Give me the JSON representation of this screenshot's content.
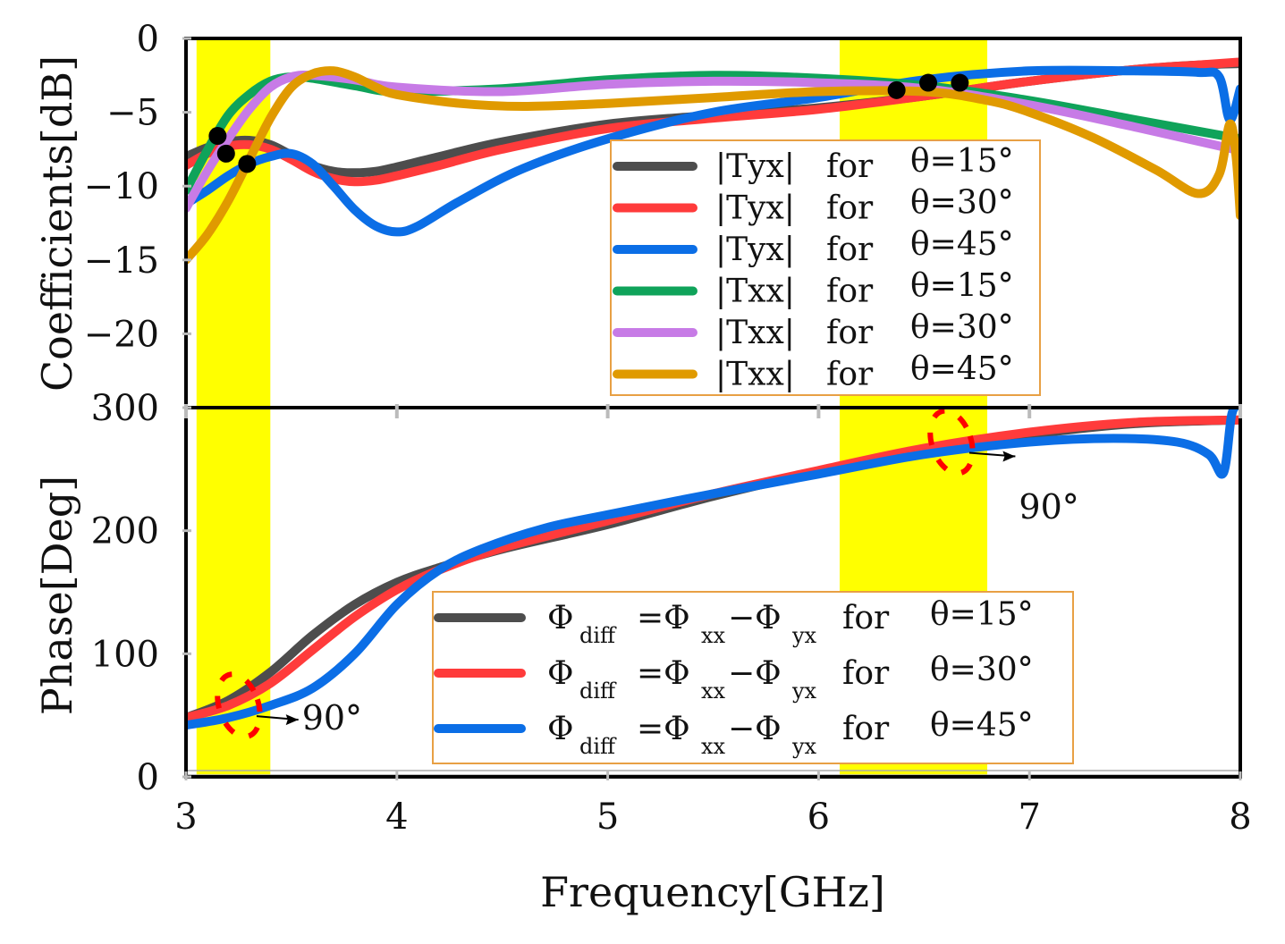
{
  "chart_data": [
    {
      "type": "line",
      "panel": "top",
      "ylabel": "Coefficients[dB]",
      "xlabel": "",
      "xlim": [
        3,
        8
      ],
      "ylim": [
        -25,
        0
      ],
      "yticks": [
        0,
        -5,
        -10,
        -15,
        -20
      ],
      "ytick_labels": [
        "0",
        "−5",
        "−10",
        "−15",
        "−20"
      ],
      "highlight_bands": [
        [
          3.05,
          3.4
        ],
        [
          6.1,
          6.8
        ]
      ],
      "legend_position": "center-right",
      "series": [
        {
          "name": "|Tyx| for θ=15°",
          "label_main": "|Tyx|",
          "label_for": "for",
          "label_theta": "θ=15°",
          "color": "#4d4d4d",
          "x": [
            3.0,
            3.1,
            3.2,
            3.3,
            3.4,
            3.5,
            3.6,
            3.7,
            3.8,
            3.9,
            4.0,
            4.2,
            4.5,
            5.0,
            5.5,
            6.0,
            6.5,
            7.0,
            7.5,
            7.8,
            8.0
          ],
          "y": [
            -8.0,
            -7.4,
            -7.0,
            -6.9,
            -7.2,
            -7.9,
            -8.6,
            -9.0,
            -9.1,
            -9.0,
            -8.7,
            -8.0,
            -7.0,
            -5.8,
            -5.2,
            -4.7,
            -3.9,
            -2.9,
            -2.1,
            -1.8,
            -1.7
          ]
        },
        {
          "name": "|Tyx| for θ=30°",
          "label_main": "|Tyx|",
          "label_for": "for",
          "label_theta": "θ=30°",
          "color": "#ff3b3b",
          "x": [
            3.0,
            3.1,
            3.2,
            3.3,
            3.4,
            3.5,
            3.6,
            3.7,
            3.8,
            3.9,
            4.0,
            4.2,
            4.5,
            5.0,
            5.5,
            6.0,
            6.5,
            7.0,
            7.5,
            7.8,
            8.0
          ],
          "y": [
            -8.6,
            -7.8,
            -7.3,
            -7.2,
            -7.5,
            -8.2,
            -9.0,
            -9.5,
            -9.7,
            -9.6,
            -9.3,
            -8.6,
            -7.5,
            -6.1,
            -5.4,
            -4.8,
            -3.9,
            -2.9,
            -2.1,
            -1.8,
            -1.6
          ]
        },
        {
          "name": "|Tyx| for θ=45°",
          "label_main": "|Tyx|",
          "label_for": "for",
          "label_theta": "θ=45°",
          "color": "#0b6ee6",
          "x": [
            3.0,
            3.1,
            3.2,
            3.3,
            3.4,
            3.5,
            3.6,
            3.7,
            3.8,
            3.9,
            4.0,
            4.1,
            4.3,
            4.6,
            5.0,
            5.5,
            6.0,
            6.5,
            7.0,
            7.5,
            7.8,
            7.9,
            7.95,
            8.0
          ],
          "y": [
            -11.2,
            -10.3,
            -9.3,
            -8.5,
            -8.0,
            -7.8,
            -8.5,
            -10.0,
            -11.6,
            -12.7,
            -13.1,
            -12.7,
            -11.0,
            -8.8,
            -6.8,
            -5.0,
            -4.0,
            -2.8,
            -2.2,
            -2.2,
            -2.3,
            -2.6,
            -5.5,
            -3.4
          ]
        },
        {
          "name": "|Txx| for θ=15°",
          "label_main": "|Txx|",
          "label_for": "for",
          "label_theta": "θ=15°",
          "color": "#0fa35a",
          "x": [
            3.0,
            3.1,
            3.2,
            3.3,
            3.4,
            3.5,
            3.6,
            3.8,
            4.0,
            4.5,
            5.0,
            5.5,
            6.0,
            6.5,
            7.0,
            7.5,
            8.0
          ],
          "y": [
            -10.3,
            -7.6,
            -5.2,
            -3.8,
            -2.9,
            -2.6,
            -2.7,
            -3.2,
            -3.6,
            -3.4,
            -2.8,
            -2.5,
            -2.7,
            -3.2,
            -4.2,
            -5.5,
            -6.8
          ]
        },
        {
          "name": "|Txx| for θ=30°",
          "label_main": "|Txx|",
          "label_for": "for",
          "label_theta": "θ=30°",
          "color": "#c77be6",
          "x": [
            3.0,
            3.1,
            3.2,
            3.3,
            3.4,
            3.5,
            3.6,
            3.8,
            4.0,
            4.5,
            5.0,
            5.5,
            6.0,
            6.5,
            7.0,
            7.5,
            8.0
          ],
          "y": [
            -11.5,
            -9.0,
            -6.8,
            -4.8,
            -3.3,
            -2.6,
            -2.5,
            -2.8,
            -3.3,
            -3.6,
            -3.1,
            -2.9,
            -3.0,
            -3.4,
            -4.5,
            -6.0,
            -7.6
          ]
        },
        {
          "name": "|Txx| for θ=45°",
          "label_main": "|Txx|",
          "label_for": "for",
          "label_theta": "θ=45°",
          "color": "#e09a00",
          "x": [
            3.0,
            3.1,
            3.2,
            3.3,
            3.4,
            3.5,
            3.6,
            3.7,
            3.8,
            3.9,
            4.0,
            4.3,
            4.6,
            5.0,
            5.5,
            6.0,
            6.5,
            6.8,
            7.0,
            7.3,
            7.6,
            7.8,
            7.9,
            7.95,
            7.98,
            8.0
          ],
          "y": [
            -15.0,
            -13.3,
            -11.0,
            -8.2,
            -5.4,
            -3.3,
            -2.4,
            -2.2,
            -2.6,
            -3.3,
            -3.8,
            -4.4,
            -4.6,
            -4.4,
            -4.0,
            -3.6,
            -3.6,
            -4.2,
            -5.0,
            -6.7,
            -8.9,
            -10.5,
            -9.2,
            -5.8,
            -8.0,
            -12.0
          ]
        }
      ],
      "markers": {
        "color": "#000000",
        "x": [
          3.15,
          3.19,
          3.29,
          6.37,
          6.52,
          6.67
        ],
        "y": [
          -6.6,
          -7.8,
          -8.5,
          -3.5,
          -3.0,
          -3.0
        ]
      }
    },
    {
      "type": "line",
      "panel": "bottom",
      "xlabel": "Frequency[GHz]",
      "ylabel": "Phase[Deg]",
      "xlim": [
        3,
        8
      ],
      "ylim": [
        0,
        300
      ],
      "xticks": [
        3,
        4,
        5,
        6,
        7,
        8
      ],
      "xtick_labels": [
        "3",
        "4",
        "5",
        "6",
        "7",
        "8"
      ],
      "yticks": [
        0,
        100,
        200,
        300
      ],
      "ytick_labels": [
        "0",
        "100",
        "200",
        "300"
      ],
      "highlight_bands": [
        [
          3.05,
          3.4
        ],
        [
          6.1,
          6.8
        ]
      ],
      "legend_position": "bottom-center",
      "series": [
        {
          "name": "Φdiff=Φxx−Φyx for θ=15°",
          "label_phi": "Φ",
          "label_sub_diff": "diff",
          "label_eq": "=Φ",
          "label_sub_xx": "xx",
          "label_minus": "−Φ",
          "label_sub_yx": "yx",
          "label_for": "for",
          "label_theta": "θ=15°",
          "color": "#4d4d4d",
          "x": [
            3.0,
            3.2,
            3.4,
            3.6,
            3.8,
            4.0,
            4.2,
            4.5,
            5.0,
            5.5,
            6.0,
            6.5,
            7.0,
            7.5,
            8.0
          ],
          "y": [
            48,
            62,
            85,
            115,
            140,
            158,
            170,
            185,
            205,
            228,
            248,
            265,
            278,
            287,
            290
          ]
        },
        {
          "name": "Φdiff=Φxx−Φyx for θ=30°",
          "label_phi": "Φ",
          "label_sub_diff": "diff",
          "label_eq": "=Φ",
          "label_sub_xx": "xx",
          "label_minus": "−Φ",
          "label_sub_yx": "yx",
          "label_for": "for",
          "label_theta": "θ=30°",
          "color": "#ff3b3b",
          "x": [
            3.0,
            3.2,
            3.4,
            3.6,
            3.8,
            4.0,
            4.2,
            4.5,
            5.0,
            5.5,
            6.0,
            6.5,
            7.0,
            7.5,
            8.0
          ],
          "y": [
            48,
            58,
            76,
            103,
            130,
            152,
            168,
            186,
            208,
            230,
            249,
            267,
            280,
            288,
            290
          ]
        },
        {
          "name": "Φdiff=Φxx−Φyx for θ=45°",
          "label_phi": "Φ",
          "label_sub_diff": "diff",
          "label_eq": "=Φ",
          "label_sub_xx": "xx",
          "label_minus": "−Φ",
          "label_sub_yx": "yx",
          "label_for": "for",
          "label_theta": "θ=45°",
          "color": "#0b6ee6",
          "x": [
            3.0,
            3.2,
            3.4,
            3.6,
            3.8,
            4.0,
            4.2,
            4.4,
            4.7,
            5.0,
            5.5,
            6.0,
            6.5,
            7.0,
            7.4,
            7.7,
            7.85,
            7.92,
            7.96,
            8.0
          ],
          "y": [
            42,
            48,
            58,
            72,
            100,
            140,
            168,
            185,
            202,
            213,
            230,
            246,
            262,
            272,
            275,
            272,
            262,
            247,
            295,
            302
          ]
        }
      ],
      "annotations": [
        {
          "text": "90°",
          "x": 3.55,
          "y": 50,
          "ellipse_center": [
            3.25,
            58
          ]
        },
        {
          "text": "90°",
          "x": 6.95,
          "y": 233,
          "ellipse_center": [
            6.63,
            272
          ]
        }
      ]
    }
  ]
}
